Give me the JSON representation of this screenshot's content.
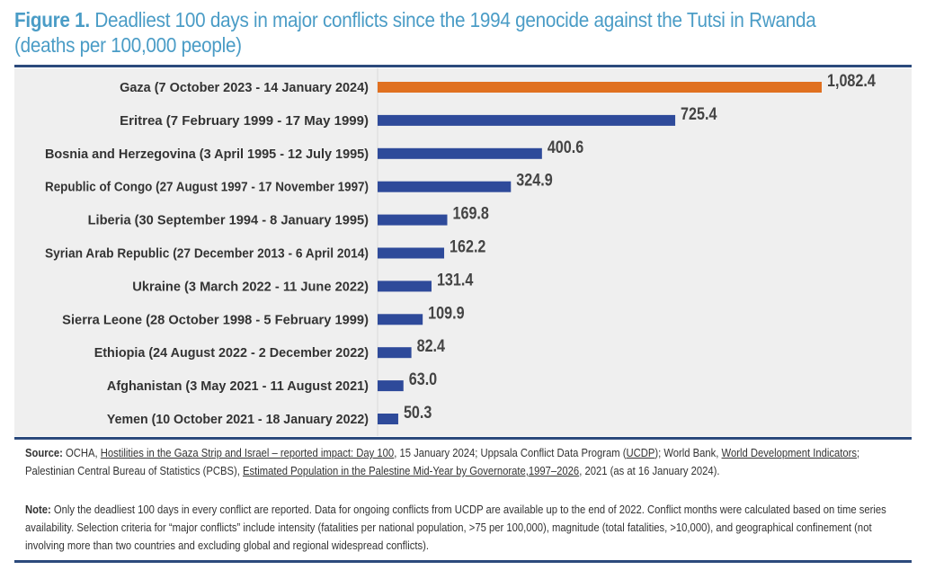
{
  "title": {
    "prefix": "Figure 1.",
    "text": " Deadliest 100 days in major conflicts since the 1994 genocide against the Tutsi in Rwanda",
    "subtitle": "(deaths per 100,000 people)"
  },
  "colors": {
    "highlight": "#e07020",
    "bar": "#2e4a9a",
    "title": "#4a9cc6",
    "rule": "#2c4a7c",
    "panel": "#efefef"
  },
  "chart_data": {
    "type": "bar",
    "orientation": "horizontal",
    "categories": [
      "Gaza (7 October 2023 - 14 January 2024)",
      "Eritrea (7 February 1999 - 17 May 1999)",
      "Bosnia and Herzegovina (3 April 1995 - 12 July 1995)",
      "Republic of Congo (27 August 1997 - 17 November 1997)",
      "Liberia (30 September 1994 - 8 January 1995)",
      "Syrian Arab Republic (27 December 2013 - 6 April 2014)",
      "Ukraine (3 March 2022 - 11 June 2022)",
      "Sierra Leone (28 October 1998 - 5 February 1999)",
      "Ethiopia (24 August 2022 - 2 December 2022)",
      "Afghanistan (3 May 2021 - 11 August 2021)",
      "Yemen (10 October 2021 - 18 January 2022)"
    ],
    "values": [
      1082.4,
      725.4,
      400.6,
      324.9,
      169.8,
      162.2,
      131.4,
      109.9,
      82.4,
      63.0,
      50.3
    ],
    "labels": [
      "1,082.4",
      "725.4",
      "400.6",
      "324.9",
      "169.8",
      "162.2",
      "131.4",
      "109.9",
      "82.4",
      "63.0",
      "50.3"
    ],
    "highlight_index": 0,
    "xlim": [
      0,
      1180
    ],
    "grid": false
  },
  "footer": {
    "source_label": "Source:",
    "source_parts": [
      {
        "t": " OCHA, "
      },
      {
        "t": "Hostilities in the Gaza Strip and Israel – reported impact: Day 100",
        "link": true
      },
      {
        "t": ", 15 January 2024; Uppsala Conflict Data Program ("
      },
      {
        "t": "UCDP",
        "link": true
      },
      {
        "t": "); World Bank, "
      },
      {
        "t": "World Development Indicators",
        "link": true
      },
      {
        "t": "; Palestinian Central Bureau of Statistics (PCBS), "
      },
      {
        "t": "Estimated Population in the Palestine Mid-Year by Governorate,1997–2026",
        "link": true
      },
      {
        "t": ", 2021 (as at 16 January 2024)."
      }
    ],
    "note_label": "Note:",
    "note_text": " Only the deadliest 100 days in every conflict are reported. Data for ongoing conflicts from UCDP are available up to the end of 2022. Conflict months were calculated based on time series availability. Selection criteria for “major conflicts” include intensity (fatalities per national population, >75 per 100,000), magnitude (total fatalities, >10,000), and geographical confinement (not involving more than two countries and excluding global and regional widespread conflicts)."
  }
}
